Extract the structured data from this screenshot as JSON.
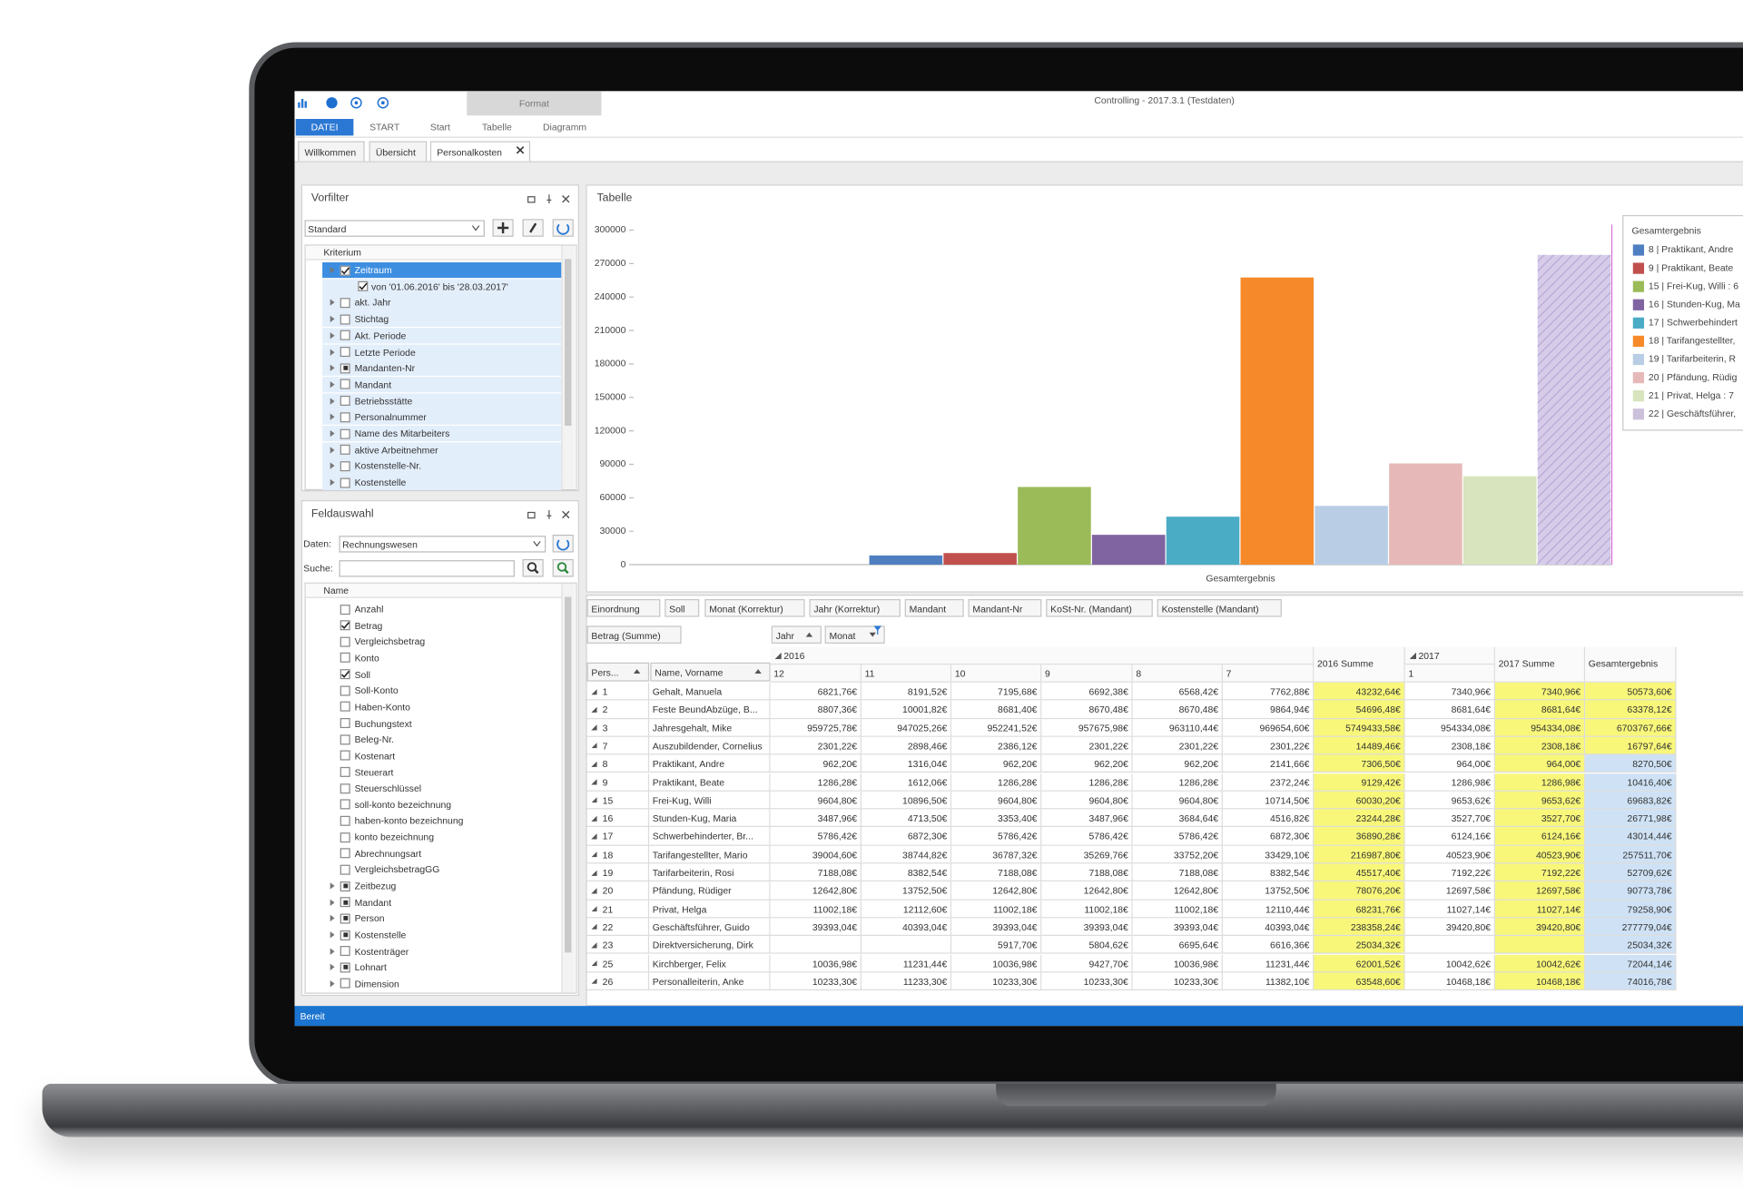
{
  "window": {
    "title": "Controlling - 2017.3.1 (Testdaten)",
    "context_tab": "Format",
    "ribbon_tabs": [
      "DATEI",
      "START",
      "Start",
      "Tabelle",
      "Diagramm"
    ],
    "doc_tabs": [
      "Willkommen",
      "Übersicht",
      "Personalkosten"
    ],
    "status": "Bereit"
  },
  "vorfilter": {
    "title": "Vorfilter",
    "preset": "Standard",
    "column": "Kriterium",
    "items": [
      {
        "label": "Zeitraum",
        "check": "on",
        "expand": true,
        "selected": true
      },
      {
        "label": "von '01.06.2016' bis '28.03.2017'",
        "check": "on",
        "level": 1
      },
      {
        "label": "akt. Jahr",
        "check": "off",
        "expand": true
      },
      {
        "label": "Stichtag",
        "check": "off",
        "expand": true
      },
      {
        "label": "Akt. Periode",
        "check": "off",
        "expand": true
      },
      {
        "label": "Letzte Periode",
        "check": "off",
        "expand": true
      },
      {
        "label": "Mandanten-Nr",
        "check": "partial",
        "expand": true
      },
      {
        "label": "Mandant",
        "check": "off",
        "expand": true
      },
      {
        "label": "Betriebsstätte",
        "check": "off",
        "expand": true
      },
      {
        "label": "Personalnummer",
        "check": "off",
        "expand": true
      },
      {
        "label": "Name des Mitarbeiters",
        "check": "off",
        "expand": true
      },
      {
        "label": "aktive Arbeitnehmer",
        "check": "off",
        "expand": true
      },
      {
        "label": "Kostenstelle-Nr.",
        "check": "off",
        "expand": true
      },
      {
        "label": "Kostenstelle",
        "check": "off",
        "expand": true
      }
    ]
  },
  "feldauswahl": {
    "title": "Feldauswahl",
    "data_label": "Daten:",
    "data_value": "Rechnungswesen",
    "search_label": "Suche:",
    "column": "Name",
    "items": [
      {
        "label": "Anzahl",
        "check": "off"
      },
      {
        "label": "Betrag",
        "check": "on"
      },
      {
        "label": "Vergleichsbetrag",
        "check": "off"
      },
      {
        "label": "Konto",
        "check": "off"
      },
      {
        "label": "Soll",
        "check": "on"
      },
      {
        "label": "Soll-Konto",
        "check": "off"
      },
      {
        "label": "Haben-Konto",
        "check": "off"
      },
      {
        "label": "Buchungstext",
        "check": "off"
      },
      {
        "label": "Beleg-Nr.",
        "check": "off"
      },
      {
        "label": "Kostenart",
        "check": "off"
      },
      {
        "label": "Steuerart",
        "check": "off"
      },
      {
        "label": "Steuerschlüssel",
        "check": "off"
      },
      {
        "label": "soll-konto bezeichnung",
        "check": "off"
      },
      {
        "label": "haben-konto bezeichnung",
        "check": "off"
      },
      {
        "label": "konto bezeichnung",
        "check": "off"
      },
      {
        "label": "Abrechnungsart",
        "check": "off"
      },
      {
        "label": "VergleichsbetragGG",
        "check": "off"
      },
      {
        "label": "Zeitbezug",
        "check": "partial",
        "expand": true
      },
      {
        "label": "Mandant",
        "check": "partial",
        "expand": true
      },
      {
        "label": "Person",
        "check": "partial",
        "expand": true
      },
      {
        "label": "Kostenstelle",
        "check": "partial",
        "expand": true
      },
      {
        "label": "Kostenträger",
        "check": "off",
        "expand": true
      },
      {
        "label": "Lohnart",
        "check": "partial",
        "expand": true
      },
      {
        "label": "Dimension",
        "check": "off",
        "expand": true
      }
    ]
  },
  "chart_data": {
    "type": "bar",
    "title": "Tabelle",
    "categories": [
      "Gesamtergebnis"
    ],
    "legend_title": "Gesamtergebnis",
    "ylim": [
      0,
      300000
    ],
    "yticks": [
      0,
      30000,
      60000,
      90000,
      120000,
      150000,
      180000,
      210000,
      240000,
      270000,
      300000
    ],
    "grid": false,
    "legend": "right",
    "series": [
      {
        "name": "8 | Praktikant, Andre",
        "color": "#4f7fc0",
        "values": [
          8270.5
        ]
      },
      {
        "name": "9 | Praktikant, Beate",
        "color": "#c0504d",
        "values": [
          10416.4
        ]
      },
      {
        "name": "15 | Frei-Kug, Willi : 6",
        "color": "#9bbb59",
        "values": [
          69683.82
        ]
      },
      {
        "name": "16 | Stunden-Kug, Ma",
        "color": "#8064a2",
        "values": [
          26771.98
        ]
      },
      {
        "name": "17 | Schwerbehindert",
        "color": "#4bacc6",
        "values": [
          43014.44
        ]
      },
      {
        "name": "18 | Tarifangestellter,",
        "color": "#f68a2a",
        "values": [
          257511.7
        ]
      },
      {
        "name": "19 | Tarifarbeiterin, R",
        "color": "#b9cde5",
        "values": [
          52709.62
        ]
      },
      {
        "name": "20 | Pfändung, Rüdig",
        "color": "#e6b9b8",
        "values": [
          90773.78
        ]
      },
      {
        "name": "21 | Privat, Helga : 7",
        "color": "#d7e4bd",
        "values": [
          79258.9
        ]
      },
      {
        "name": "22 | Geschäftsführer,",
        "color": "#ccc1da",
        "values": [
          277779.04
        ],
        "hatched": true
      }
    ]
  },
  "pivot": {
    "measure": "Betrag (Summe)",
    "filter_fields": [
      "Einordnung",
      "Soll",
      "Monat (Korrektur)",
      "Jahr (Korrektur)",
      "Mandant",
      "Mandant-Nr",
      "KoSt-Nr. (Mandant)",
      "Kostenstelle (Mandant)"
    ],
    "column_fields": [
      "Jahr",
      "Monat"
    ],
    "row_fields": [
      "Pers...",
      "Name, Vorname"
    ],
    "years": [
      "2016",
      "2017"
    ],
    "columns": [
      "12",
      "11",
      "10",
      "9",
      "8",
      "7",
      "2016 Summe",
      "1",
      "2017 Summe",
      "Gesamtergebnis"
    ],
    "rows": [
      {
        "id": "1",
        "name": "Gehalt, Manuela",
        "cells": [
          "6821,76€",
          "8191,52€",
          "7195,68€",
          "6692,38€",
          "6568,42€",
          "7762,88€",
          "43232,64€",
          "7340,96€",
          "7340,96€",
          "50573,60€"
        ]
      },
      {
        "id": "2",
        "name": "Feste BeundAbzüge, B...",
        "cells": [
          "8807,36€",
          "10001,82€",
          "8681,40€",
          "8670,48€",
          "8670,48€",
          "9864,94€",
          "54696,48€",
          "8681,64€",
          "8681,64€",
          "63378,12€"
        ]
      },
      {
        "id": "3",
        "name": "Jahresgehalt, Mike",
        "cells": [
          "959725,78€",
          "947025,26€",
          "952241,52€",
          "957675,98€",
          "963110,44€",
          "969654,60€",
          "5749433,58€",
          "954334,08€",
          "954334,08€",
          "6703767,66€"
        ]
      },
      {
        "id": "7",
        "name": "Auszubildender, Cornelius",
        "cells": [
          "2301,22€",
          "2898,46€",
          "2386,12€",
          "2301,22€",
          "2301,22€",
          "2301,22€",
          "14489,46€",
          "2308,18€",
          "2308,18€",
          "16797,64€"
        ]
      },
      {
        "id": "8",
        "name": "Praktikant, Andre",
        "cells": [
          "962,20€",
          "1316,04€",
          "962,20€",
          "962,20€",
          "962,20€",
          "2141,66€",
          "7306,50€",
          "964,00€",
          "964,00€",
          "8270,50€"
        ]
      },
      {
        "id": "9",
        "name": "Praktikant, Beate",
        "cells": [
          "1286,28€",
          "1612,06€",
          "1286,28€",
          "1286,28€",
          "1286,28€",
          "2372,24€",
          "9129,42€",
          "1286,98€",
          "1286,98€",
          "10416,40€"
        ]
      },
      {
        "id": "15",
        "name": "Frei-Kug, Willi",
        "cells": [
          "9604,80€",
          "10896,50€",
          "9604,80€",
          "9604,80€",
          "9604,80€",
          "10714,50€",
          "60030,20€",
          "9653,62€",
          "9653,62€",
          "69683,82€"
        ]
      },
      {
        "id": "16",
        "name": "Stunden-Kug, Maria",
        "cells": [
          "3487,96€",
          "4713,50€",
          "3353,40€",
          "3487,96€",
          "3684,64€",
          "4516,82€",
          "23244,28€",
          "3527,70€",
          "3527,70€",
          "26771,98€"
        ]
      },
      {
        "id": "17",
        "name": "Schwerbehinderter, Br...",
        "cells": [
          "5786,42€",
          "6872,30€",
          "5786,42€",
          "5786,42€",
          "5786,42€",
          "6872,30€",
          "36890,28€",
          "6124,16€",
          "6124,16€",
          "43014,44€"
        ]
      },
      {
        "id": "18",
        "name": "Tarifangestellter, Mario",
        "cells": [
          "39004,60€",
          "38744,82€",
          "36787,32€",
          "35269,76€",
          "33752,20€",
          "33429,10€",
          "216987,80€",
          "40523,90€",
          "40523,90€",
          "257511,70€"
        ]
      },
      {
        "id": "19",
        "name": "Tarifarbeiterin, Rosi",
        "cells": [
          "7188,08€",
          "8382,54€",
          "7188,08€",
          "7188,08€",
          "7188,08€",
          "8382,54€",
          "45517,40€",
          "7192,22€",
          "7192,22€",
          "52709,62€"
        ]
      },
      {
        "id": "20",
        "name": "Pfändung, Rüdiger",
        "cells": [
          "12642,80€",
          "13752,50€",
          "12642,80€",
          "12642,80€",
          "12642,80€",
          "13752,50€",
          "78076,20€",
          "12697,58€",
          "12697,58€",
          "90773,78€"
        ]
      },
      {
        "id": "21",
        "name": "Privat, Helga",
        "cells": [
          "11002,18€",
          "12112,60€",
          "11002,18€",
          "11002,18€",
          "11002,18€",
          "12110,44€",
          "68231,76€",
          "11027,14€",
          "11027,14€",
          "79258,90€"
        ]
      },
      {
        "id": "22",
        "name": "Geschäftsführer, Guido",
        "cells": [
          "39393,04€",
          "40393,04€",
          "39393,04€",
          "39393,04€",
          "39393,04€",
          "40393,04€",
          "238358,24€",
          "39420,80€",
          "39420,80€",
          "277779,04€"
        ]
      },
      {
        "id": "23",
        "name": "Direktversicherung, Dirk",
        "cells": [
          null,
          null,
          "5917,70€",
          "5804,62€",
          "6695,64€",
          "6616,36€",
          "25034,32€",
          null,
          null,
          "25034,32€"
        ]
      },
      {
        "id": "25",
        "name": "Kirchberger, Felix",
        "cells": [
          "10036,98€",
          "11231,44€",
          "10036,98€",
          "9427,70€",
          "10036,98€",
          "11231,44€",
          "62001,52€",
          "10042,62€",
          "10042,62€",
          "72044,14€"
        ]
      },
      {
        "id": "26",
        "name": "Personalleiterin, Anke",
        "cells": [
          "10233,30€",
          "11233,30€",
          "10233,30€",
          "10233,30€",
          "10233,30€",
          "11382,10€",
          "63548,60€",
          "10468,18€",
          "10468,18€",
          "74016,78€"
        ]
      }
    ]
  }
}
